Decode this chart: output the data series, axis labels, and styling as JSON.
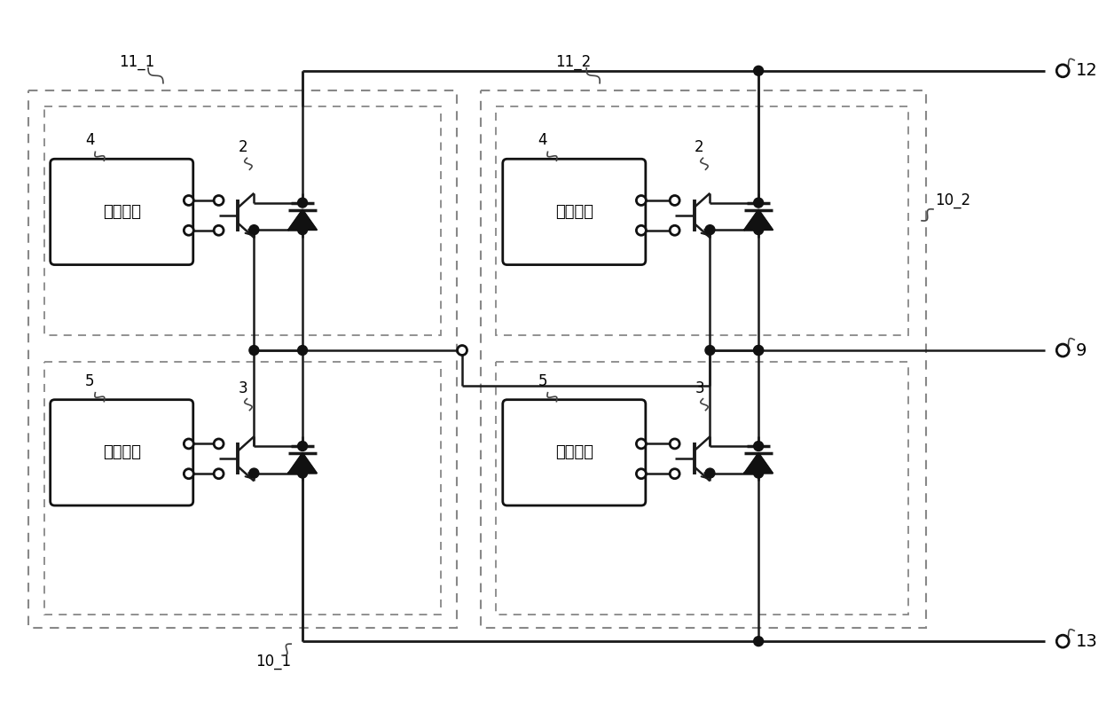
{
  "bg_color": "#ffffff",
  "fig_width": 12.39,
  "fig_height": 7.95,
  "dpi": 100,
  "label_11_1": "11_1",
  "label_11_2": "11_2",
  "label_10_1": "10_1",
  "label_10_2": "10_2",
  "label_2": "2",
  "label_3": "3",
  "label_4": "4",
  "label_5": "5",
  "label_9": "9",
  "label_12": "12",
  "label_13": "13",
  "drive_text": "驱动电路"
}
